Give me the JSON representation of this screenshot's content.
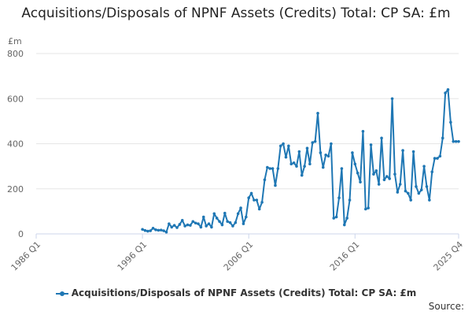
{
  "chart_data": {
    "type": "line",
    "title": "Acquisitions/Disposals of NPNF Assets (Credits) Total: CP SA: £m",
    "y_unit_label": "£m",
    "ylim": [
      0,
      800
    ],
    "y_ticks": [
      0,
      200,
      400,
      600,
      800
    ],
    "x_tick_labels": [
      "1986 Q1",
      "1996 Q1",
      "2006 Q1",
      "2016 Q1",
      "2025 Q4"
    ],
    "x_range": [
      "1986 Q1",
      "2025 Q4"
    ],
    "grid": true,
    "legend_position": "bottom",
    "color": "#1f77b4",
    "series": [
      {
        "name": "Acquisitions/Disposals of NPNF Assets (Credits) Total: CP SA: £m",
        "x_start": "1996 Q1",
        "values": [
          20,
          15,
          12,
          14,
          25,
          18,
          16,
          17,
          14,
          8,
          45,
          30,
          38,
          28,
          42,
          60,
          35,
          40,
          38,
          55,
          48,
          45,
          30,
          75,
          35,
          45,
          30,
          90,
          70,
          55,
          40,
          92,
          55,
          50,
          35,
          50,
          90,
          115,
          45,
          75,
          160,
          180,
          150,
          150,
          110,
          140,
          240,
          295,
          290,
          290,
          215,
          290,
          390,
          400,
          340,
          390,
          310,
          315,
          300,
          365,
          260,
          300,
          380,
          310,
          405,
          410,
          535,
          360,
          295,
          350,
          345,
          400,
          70,
          75,
          160,
          290,
          40,
          70,
          150,
          360,
          310,
          270,
          230,
          455,
          110,
          115,
          395,
          265,
          280,
          220,
          425,
          240,
          255,
          245,
          600,
          265,
          185,
          220,
          370,
          190,
          180,
          150,
          365,
          210,
          180,
          195,
          300,
          210,
          150,
          275,
          335,
          335,
          345,
          425,
          625,
          640,
          495,
          410,
          410,
          410
        ]
      }
    ]
  },
  "legend": {
    "label": "Acquisitions/Disposals of NPNF Assets (Credits) Total: CP SA: £m"
  },
  "source_label": "Source:"
}
